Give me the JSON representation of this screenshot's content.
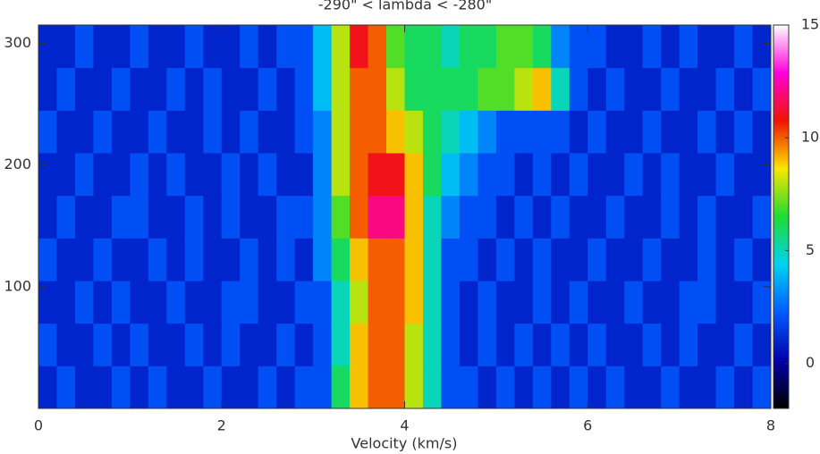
{
  "chart_data": {
    "type": "heatmap",
    "title": "-290\" < lambda < -280\"",
    "x_label": "Velocity (km/s)",
    "x": [
      0.1,
      0.3,
      0.5,
      0.7,
      0.9,
      1.1,
      1.3,
      1.5,
      1.7,
      1.9,
      2.1,
      2.3,
      2.5,
      2.7,
      2.9,
      3.1,
      3.3,
      3.5,
      3.7,
      3.9,
      4.1,
      4.3,
      4.5,
      4.7,
      4.9,
      5.1,
      5.3,
      5.5,
      5.7,
      5.9,
      6.1,
      6.3,
      6.5,
      6.7,
      6.9,
      7.1,
      7.3,
      7.5,
      7.7,
      7.9
    ],
    "y": [
      17.5,
      52.5,
      87.5,
      122.5,
      157.5,
      192.5,
      227.5,
      262.5,
      297.5
    ],
    "values": [
      [
        1,
        2,
        1,
        1,
        2,
        1,
        2,
        1,
        1,
        2,
        1,
        1,
        2,
        1,
        2,
        2,
        6,
        9,
        10,
        10,
        8,
        5,
        2,
        2,
        1,
        2,
        1,
        2,
        1,
        2,
        1,
        2,
        1,
        1,
        2,
        1,
        1,
        2,
        1,
        2
      ],
      [
        2,
        1,
        1,
        2,
        1,
        2,
        1,
        1,
        2,
        1,
        2,
        1,
        1,
        2,
        1,
        2,
        5,
        9,
        10,
        10,
        8,
        5,
        2,
        1,
        2,
        1,
        2,
        1,
        2,
        1,
        2,
        1,
        1,
        2,
        1,
        2,
        1,
        1,
        2,
        1
      ],
      [
        1,
        1,
        2,
        1,
        2,
        1,
        1,
        2,
        1,
        1,
        2,
        2,
        1,
        1,
        2,
        2,
        5,
        8,
        10,
        10,
        9,
        5,
        2,
        1,
        2,
        1,
        1,
        2,
        1,
        2,
        1,
        1,
        2,
        1,
        1,
        2,
        2,
        1,
        1,
        2
      ],
      [
        2,
        1,
        1,
        2,
        1,
        1,
        2,
        1,
        2,
        1,
        1,
        2,
        1,
        2,
        1,
        3,
        6,
        9,
        10,
        10,
        9,
        5,
        2,
        2,
        1,
        2,
        1,
        2,
        1,
        1,
        2,
        1,
        1,
        2,
        1,
        1,
        2,
        1,
        2,
        1
      ],
      [
        1,
        2,
        1,
        1,
        2,
        2,
        1,
        1,
        2,
        1,
        2,
        1,
        1,
        2,
        2,
        3,
        7,
        10,
        12,
        12,
        9,
        5,
        3,
        2,
        2,
        1,
        2,
        1,
        2,
        1,
        1,
        2,
        1,
        1,
        2,
        1,
        2,
        1,
        1,
        2
      ],
      [
        1,
        1,
        2,
        1,
        1,
        2,
        1,
        2,
        1,
        1,
        2,
        1,
        2,
        1,
        1,
        3,
        8,
        10,
        11,
        11,
        9,
        6,
        4,
        3,
        2,
        2,
        1,
        2,
        1,
        2,
        1,
        1,
        2,
        1,
        2,
        1,
        1,
        2,
        1,
        1
      ],
      [
        2,
        1,
        1,
        2,
        1,
        1,
        2,
        1,
        1,
        2,
        1,
        2,
        1,
        1,
        2,
        3,
        8,
        10,
        10,
        9,
        8,
        6,
        5,
        4,
        3,
        2,
        2,
        2,
        2,
        1,
        2,
        1,
        1,
        2,
        1,
        1,
        2,
        1,
        2,
        1
      ],
      [
        1,
        2,
        1,
        1,
        2,
        1,
        1,
        2,
        1,
        2,
        1,
        1,
        2,
        1,
        2,
        4,
        8,
        10,
        10,
        8,
        6,
        6,
        6,
        6,
        7,
        7,
        8,
        9,
        5,
        2,
        1,
        2,
        1,
        1,
        2,
        1,
        1,
        2,
        1,
        2
      ],
      [
        1,
        1,
        2,
        1,
        1,
        2,
        1,
        1,
        2,
        1,
        1,
        2,
        1,
        2,
        2,
        4,
        8,
        11,
        10,
        7,
        6,
        6,
        5,
        6,
        6,
        7,
        7,
        6,
        3,
        2,
        2,
        1,
        1,
        2,
        1,
        2,
        1,
        1,
        2,
        1
      ]
    ],
    "xlim": [
      0,
      8
    ],
    "xticks": [
      0,
      2,
      4,
      6,
      8
    ],
    "ylim": [
      0,
      315
    ],
    "yticks": [
      100,
      200,
      300
    ],
    "zlim": [
      -2,
      15
    ],
    "zticks": [
      0,
      5,
      10,
      15
    ],
    "colorscale": [
      "#000000",
      "#0000aa",
      "#005aff",
      "#00d2f0",
      "#1edc32",
      "#fae600",
      "#f01400",
      "#ff00dc",
      "#ffffff"
    ]
  }
}
